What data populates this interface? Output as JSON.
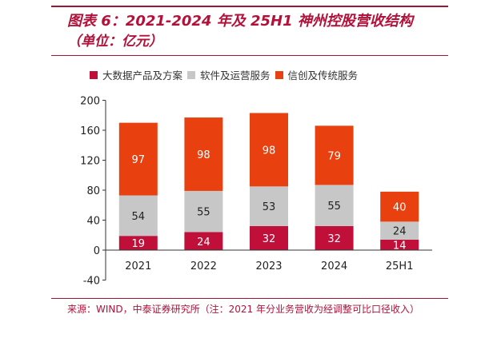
{
  "header": {
    "title": "图表 6：2021-2024 年及 25H1 神州控股营收结构",
    "subtitle": "（单位：亿元）"
  },
  "chart_data": {
    "type": "bar",
    "stacked": true,
    "categories": [
      "2021",
      "2022",
      "2023",
      "2024",
      "25H1"
    ],
    "series": [
      {
        "name": "大数据产品及方案",
        "color": "#c0103a",
        "values": [
          19,
          24,
          32,
          32,
          14
        ]
      },
      {
        "name": "软件及运营服务",
        "color": "#c7c7c7",
        "values": [
          54,
          55,
          53,
          55,
          24
        ]
      },
      {
        "name": "信创及传统服务",
        "color": "#e8410f",
        "values": [
          97,
          98,
          98,
          79,
          40
        ]
      }
    ],
    "ylim": [
      -40,
      200
    ],
    "yticks": [
      "-40",
      "0",
      "40",
      "80",
      "120",
      "160",
      "200"
    ],
    "legend_position": "top",
    "grid": false
  },
  "footer": {
    "source": "来源：WIND，中泰证券研究所（注：2021 年分业务营收为经调整可比口径收入）"
  }
}
